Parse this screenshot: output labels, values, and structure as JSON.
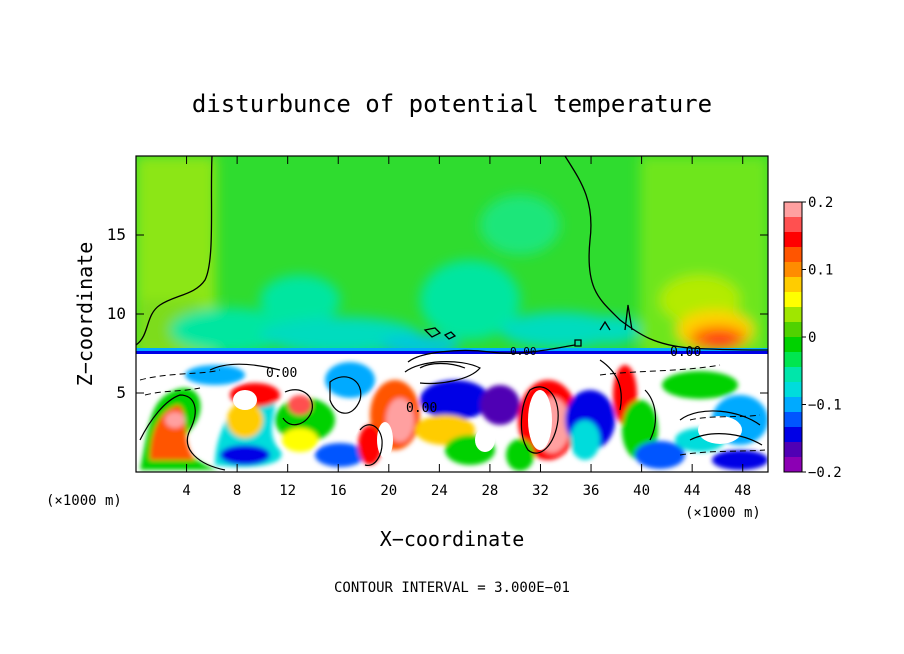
{
  "chart_data": {
    "type": "heatmap",
    "title": "disturbunce of potential temperature",
    "xlabel": "X−coordinate",
    "ylabel": "Z−coordinate",
    "x_unit": "(×1000 m)",
    "y_unit": "(×1000 m)",
    "xlim": [
      0,
      50
    ],
    "ylim": [
      0,
      20
    ],
    "x_ticks": [
      4,
      8,
      12,
      16,
      20,
      24,
      28,
      32,
      36,
      40,
      44,
      48
    ],
    "y_ticks": [
      5,
      10,
      15
    ],
    "colorbar": {
      "range": [
        -0.2,
        0.2
      ],
      "tick_values": [
        0.2,
        0.1,
        0,
        -0.1,
        -0.2
      ],
      "tick_labels": [
        "0.2",
        "0.1",
        "0",
        "−0.1",
        "−0.2"
      ],
      "colors": [
        "#ffa0a0",
        "#ff5050",
        "#ff0000",
        "#ff5500",
        "#ff8c00",
        "#ffcc00",
        "#ffff00",
        "#a0e600",
        "#50d200",
        "#00d200",
        "#00e650",
        "#00e6aa",
        "#00dcdc",
        "#00aaff",
        "#0055ff",
        "#0000e6",
        "#5000b4",
        "#8c00b4"
      ]
    },
    "contour_labels": [
      "0.00",
      "0.00",
      "0.00",
      "0.00"
    ],
    "grid": false,
    "legend": "right"
  },
  "footer": {
    "contour_interval": "CONTOUR INTERVAL = 3.000E−01"
  }
}
